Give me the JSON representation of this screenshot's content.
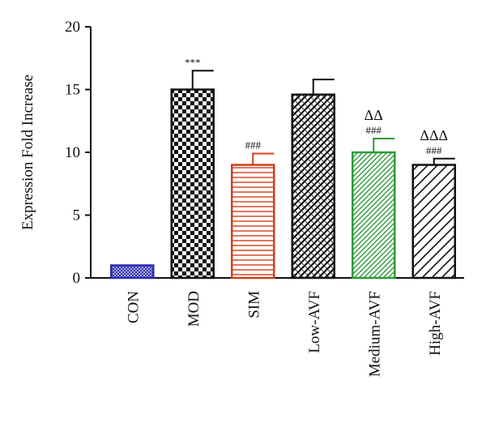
{
  "chart_data": {
    "type": "bar",
    "ylabel": "Expression Fold Increase",
    "xlabel": "",
    "title": "",
    "ylim": [
      0,
      20
    ],
    "yticks": [
      0,
      5,
      10,
      15,
      20
    ],
    "grid": false,
    "categories": [
      "CON",
      "MOD",
      "SIM",
      "Low-AVF",
      "Medium-AVF",
      "High-AVF"
    ],
    "values": [
      1,
      15,
      9,
      14.6,
      10,
      9
    ],
    "errors": [
      0,
      1.5,
      0.9,
      1.2,
      1.1,
      0.5
    ],
    "annotations": [
      "",
      "***",
      "###",
      "",
      "###",
      "###"
    ],
    "annotations_top": [
      "",
      "",
      "",
      "",
      "ΔΔ",
      "ΔΔΔ"
    ],
    "colors": [
      "#2b2bb0",
      "#111111",
      "#d0401a",
      "#111111",
      "#2e9a3a",
      "#111111"
    ],
    "patterns": [
      "crosshatch-fine",
      "checker",
      "horizontal-lines",
      "diamond-weave",
      "diagonal-lines",
      "wide-diagonal-lines"
    ]
  }
}
